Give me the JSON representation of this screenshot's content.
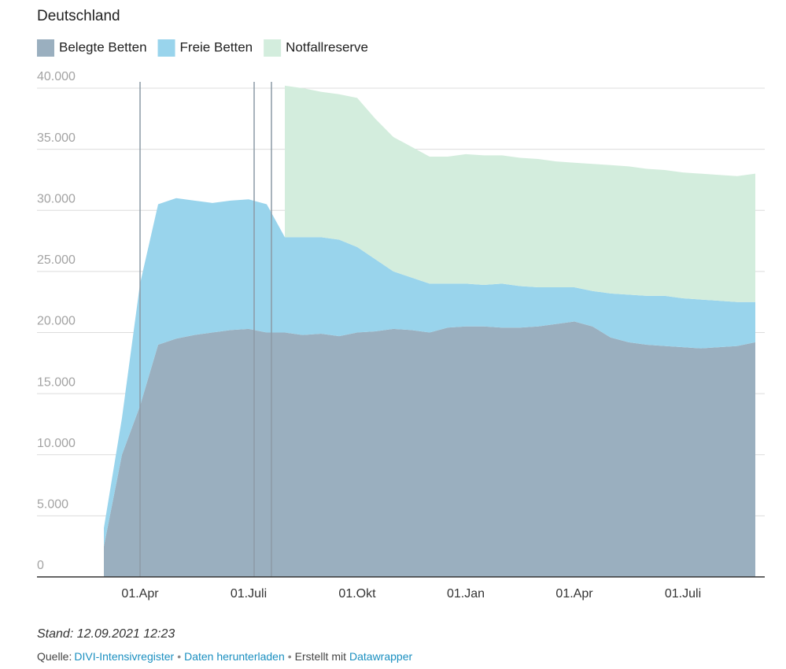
{
  "chart_data": {
    "type": "stacked-area",
    "title": "Deutschland",
    "categories": [
      null,
      null,
      "01.Apr",
      null,
      null,
      null,
      null,
      null,
      "01.Juli",
      null,
      null,
      null,
      null,
      null,
      "01.Okt",
      null,
      null,
      null,
      null,
      null,
      "01.Jan",
      null,
      null,
      null,
      null,
      null,
      "01.Apr",
      null,
      null,
      null,
      null,
      null,
      "01.Juli",
      null,
      null,
      null,
      null
    ],
    "series": [
      {
        "name": "Belegte Betten",
        "color": "#9aafbf",
        "values": [
          2500,
          10000,
          14000,
          19000,
          19500,
          19800,
          20000,
          20200,
          20300,
          20000,
          20000,
          19800,
          19900,
          19700,
          20000,
          20100,
          20300,
          20200,
          20000,
          20400,
          20500,
          20500,
          20400,
          20400,
          20500,
          20700,
          20900,
          20500,
          19600,
          19200,
          19000,
          18900,
          18800,
          18700,
          18800,
          18900,
          19200
        ]
      },
      {
        "name": "Freie Betten",
        "color": "#99d4ec",
        "values": [
          1500,
          3000,
          10000,
          11500,
          11500,
          11000,
          10600,
          10600,
          10600,
          10500,
          7800,
          8000,
          7900,
          7900,
          7000,
          5900,
          4700,
          4300,
          4000,
          3600,
          3500,
          3400,
          3600,
          3400,
          3200,
          3000,
          2800,
          2900,
          3600,
          3900,
          4000,
          4100,
          4000,
          4000,
          3800,
          3600,
          3300
        ]
      },
      {
        "name": "Notfallreserve",
        "color": "#d3eddd",
        "values": [
          null,
          null,
          null,
          null,
          null,
          null,
          null,
          null,
          null,
          null,
          12400,
          12200,
          11900,
          11900,
          12200,
          11500,
          11000,
          10700,
          10400,
          10400,
          10600,
          10600,
          10500,
          10500,
          10500,
          10300,
          10200,
          10400,
          10500,
          10500,
          10400,
          10300,
          10300,
          10300,
          10300,
          10300,
          10500
        ]
      }
    ],
    "ylim": [
      0,
      40000
    ],
    "yticks": [
      0,
      {
        "value": 5000,
        "label": "5.000"
      },
      {
        "value": 10000,
        "label": "10.000"
      },
      {
        "value": 15000,
        "label": "15.000"
      },
      {
        "value": 20000,
        "label": "20.000"
      },
      {
        "value": 25000,
        "label": "25.000"
      },
      {
        "value": 30000,
        "label": "30.000"
      },
      {
        "value": 35000,
        "label": "35.000"
      },
      {
        "value": 40000,
        "label": "40.000"
      }
    ],
    "grid": true,
    "note": "Stand: 12.09.2021 12:23",
    "source_label": "Quelle:",
    "source": "DIVI-Intensivregister",
    "download": "Daten herunterladen",
    "credit": "Erstellt mit",
    "credit_link": "Datawrapper"
  }
}
